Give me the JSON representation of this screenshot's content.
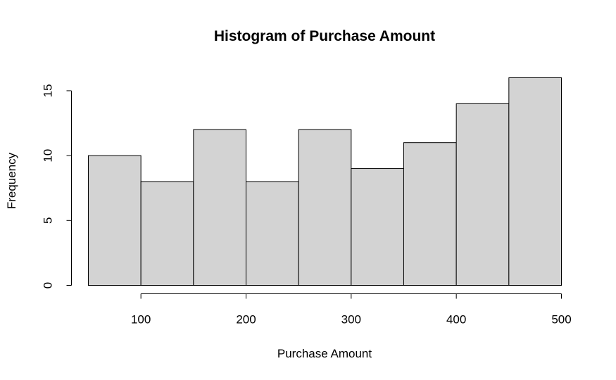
{
  "chart_data": {
    "type": "bar",
    "title": "Histogram of Purchase Amount",
    "xlabel": "Purchase Amount",
    "ylabel": "Frequency",
    "bins": [
      {
        "start": 50,
        "end": 100,
        "count": 10
      },
      {
        "start": 100,
        "end": 150,
        "count": 8
      },
      {
        "start": 150,
        "end": 200,
        "count": 12
      },
      {
        "start": 200,
        "end": 250,
        "count": 8
      },
      {
        "start": 250,
        "end": 300,
        "count": 12
      },
      {
        "start": 300,
        "end": 350,
        "count": 9
      },
      {
        "start": 350,
        "end": 400,
        "count": 11
      },
      {
        "start": 400,
        "end": 450,
        "count": 14
      },
      {
        "start": 450,
        "end": 500,
        "count": 16
      }
    ],
    "xlim": [
      50,
      500
    ],
    "ylim": [
      0,
      16
    ],
    "x_ticks": [
      100,
      200,
      300,
      400,
      500
    ],
    "y_ticks": [
      0,
      5,
      10,
      15
    ],
    "bar_fill": "#d3d3d3",
    "bar_stroke": "#000000",
    "grid": false,
    "legend": "none"
  }
}
